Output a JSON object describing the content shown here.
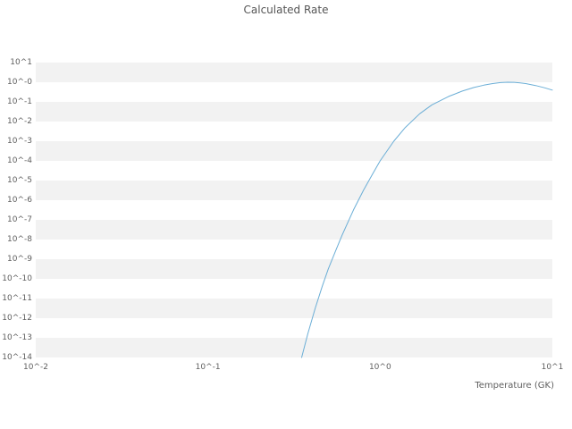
{
  "title": "Calculated Rate",
  "axes": {
    "xlabel": "Temperature (GK)",
    "x_tick_labels": [
      "10^-2",
      "10^-1",
      "10^0",
      "10^1"
    ],
    "y_tick_labels": [
      "10^1",
      "10^-0",
      "10^-1",
      "10^-2",
      "10^-3",
      "10^-4",
      "10^-5",
      "10^-6",
      "10^-7",
      "10^-8",
      "10^-9",
      "10^-10",
      "10^-11",
      "10^-12",
      "10^-13",
      "10^-14"
    ]
  },
  "colors": {
    "line": "#6baed6",
    "band": "#f2f2f2",
    "text": "#606060",
    "title_text": "#555555"
  },
  "chart_data": {
    "type": "line",
    "title": "Calculated Rate",
    "xlabel": "Temperature (GK)",
    "ylabel": "",
    "x_scale": "log",
    "y_scale": "log",
    "xlim": [
      0.01,
      10
    ],
    "ylim": [
      1e-14,
      10
    ],
    "grid": "horizontal-bands",
    "legend": "none",
    "series": [
      {
        "name": "calculated-rate",
        "x": [
          0.35,
          0.38,
          0.42,
          0.46,
          0.5,
          0.55,
          0.6,
          0.7,
          0.8,
          0.9,
          1.0,
          1.2,
          1.4,
          1.7,
          2.0,
          2.5,
          3.0,
          3.5,
          4.0,
          4.5,
          5.0,
          5.5,
          6.0,
          6.5,
          7.0,
          8.0,
          9.0,
          10.0
        ],
        "y": [
          1e-14,
          1.6e-13,
          3.2e-12,
          4e-11,
          3.2e-10,
          2.5e-09,
          1.6e-08,
          3.2e-07,
          3.2e-06,
          2e-05,
          0.0001,
          0.001,
          0.005,
          0.025,
          0.071,
          0.19,
          0.355,
          0.537,
          0.708,
          0.851,
          0.955,
          1.0,
          0.989,
          0.933,
          0.851,
          0.676,
          0.525,
          0.398
        ]
      }
    ]
  }
}
